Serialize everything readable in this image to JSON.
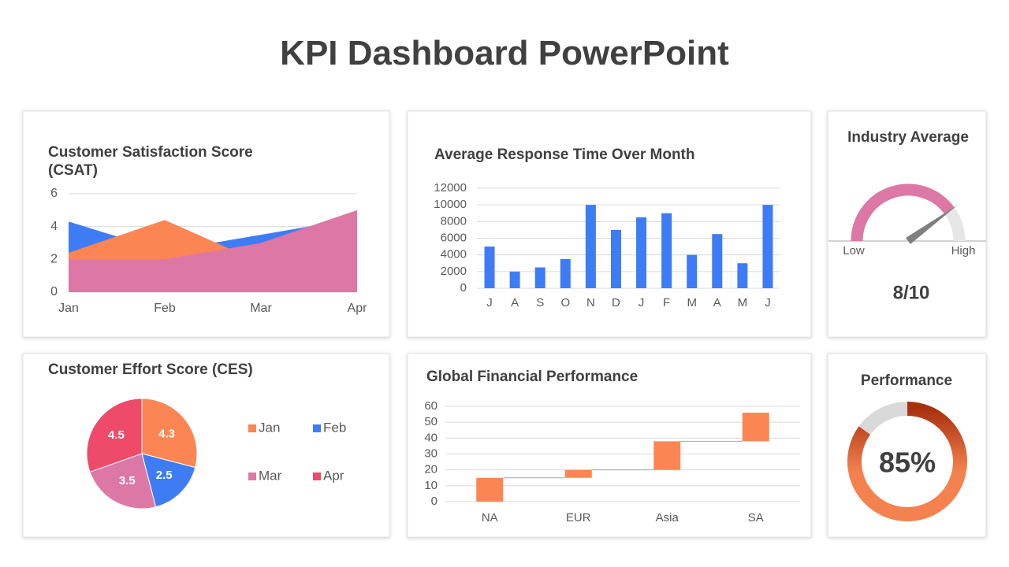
{
  "title": "KPI Dashboard PowerPoint",
  "chart_data": [
    {
      "type": "area",
      "title": "Customer Satisfaction Score (CSAT)",
      "categories": [
        "Jan",
        "Feb",
        "Mar",
        "Apr"
      ],
      "series": [
        {
          "color": "#3d7cf5",
          "values": [
            4.3,
            2.5,
            3.5,
            4.5
          ]
        },
        {
          "color": "#fb8553",
          "values": [
            2.4,
            4.4,
            1.8,
            2.8
          ]
        },
        {
          "color": "#dc77a6",
          "values": [
            2,
            2,
            3,
            5
          ]
        }
      ],
      "ylim": [
        0,
        6
      ],
      "yticks": [
        0,
        2,
        4,
        6
      ],
      "grid": true
    },
    {
      "type": "bar",
      "title": "Average Response Time Over Month",
      "categories": [
        "J",
        "A",
        "S",
        "O",
        "N",
        "D",
        "J",
        "F",
        "M",
        "A",
        "M",
        "J"
      ],
      "values": [
        5000,
        2000,
        2500,
        3500,
        10000,
        7000,
        8500,
        9000,
        4000,
        6500,
        3000,
        10000
      ],
      "color": "#3d7cf5",
      "ylim": [
        0,
        12000
      ],
      "yticks": [
        0,
        2000,
        4000,
        6000,
        8000,
        10000,
        12000
      ],
      "grid": true
    },
    {
      "type": "gauge",
      "title": "Industry Average",
      "value": 8,
      "value_label": "8/10",
      "lim": [
        0,
        10
      ],
      "lim_labels": [
        "Low",
        "High"
      ],
      "color": "#dc77a6"
    },
    {
      "type": "pie",
      "title": "Customer Effort Score (CES)",
      "categories": [
        "Jan",
        "Feb",
        "Mar",
        "Apr"
      ],
      "values": [
        4.3,
        2.5,
        3.5,
        4.5
      ],
      "colors": [
        "#fb8553",
        "#3d7cf5",
        "#dc77a6",
        "#ee4a6a"
      ]
    },
    {
      "type": "waterfall",
      "title": "Global Financial Performance",
      "categories": [
        "NA",
        "EUR",
        "Asia",
        "SA"
      ],
      "values": [
        15,
        5,
        18,
        18
      ],
      "color": "#fb8553",
      "ylim": [
        0,
        60
      ],
      "yticks": [
        0,
        10,
        20,
        30,
        40,
        50,
        60
      ],
      "grid": true
    },
    {
      "type": "donut",
      "title": "Performance",
      "value": 85,
      "value_label": "85%",
      "lim": [
        0,
        100
      ],
      "colors": [
        "#a8300f",
        "#f4824f"
      ]
    }
  ]
}
